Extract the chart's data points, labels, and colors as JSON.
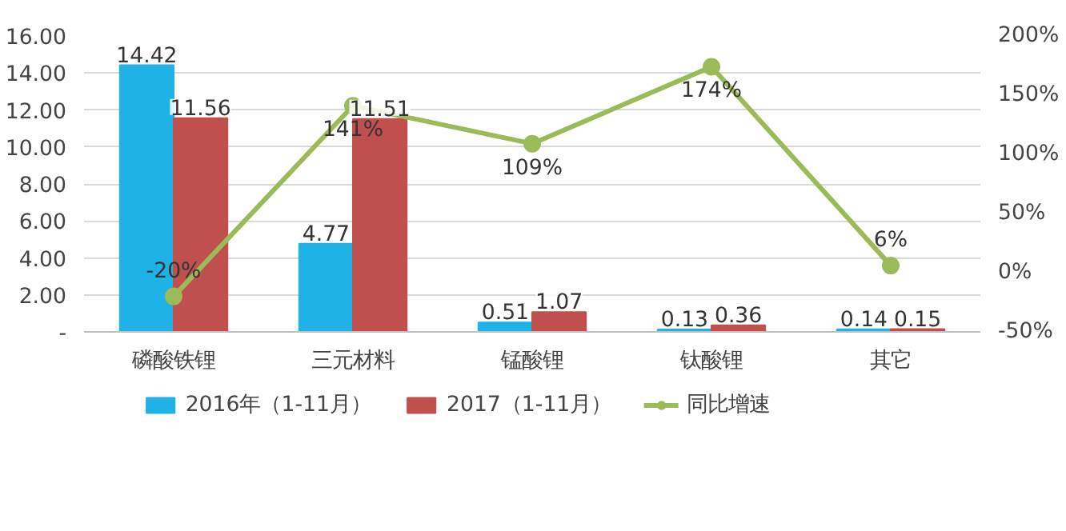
{
  "chart_data": {
    "type": "bar",
    "categories": [
      "磷酸铁锂",
      "三元材料",
      "锰酸锂",
      "钛酸锂",
      "其它"
    ],
    "series": [
      {
        "name": "2016年（1-11月）",
        "color": "#1fb2e6",
        "values": [
          14.42,
          4.77,
          0.51,
          0.13,
          0.14
        ]
      },
      {
        "name": "2017（1-11月）",
        "color": "#c0504d",
        "values": [
          11.56,
          11.51,
          1.07,
          0.36,
          0.15
        ]
      },
      {
        "name": "同比增速",
        "type": "line",
        "axis": "y2",
        "color": "#9bbb59",
        "values": [
          -20,
          141,
          109,
          174,
          6
        ],
        "value_labels": [
          "-20%",
          "141%",
          "109%",
          "174%",
          "6%"
        ]
      }
    ],
    "data_labels": true,
    "ylim": [
      0,
      16
    ],
    "yticks": [
      {
        "value": 0,
        "label": "-"
      },
      {
        "value": 2,
        "label": "2.00"
      },
      {
        "value": 4,
        "label": "4.00"
      },
      {
        "value": 6,
        "label": "6.00"
      },
      {
        "value": 8,
        "label": "8.00"
      },
      {
        "value": 10,
        "label": "10.00"
      },
      {
        "value": 12,
        "label": "12.00"
      },
      {
        "value": 14,
        "label": "14.00"
      },
      {
        "value": 16,
        "label": "16.00"
      }
    ],
    "y2lim": [
      -50,
      200
    ],
    "y2ticks": [
      {
        "value": -50,
        "label": "-50%"
      },
      {
        "value": 0,
        "label": "0%"
      },
      {
        "value": 50,
        "label": "50%"
      },
      {
        "value": 100,
        "label": "100%"
      },
      {
        "value": 150,
        "label": "150%"
      },
      {
        "value": 200,
        "label": "200%"
      }
    ],
    "grid": "y",
    "legend": "bottom",
    "marker": "circle",
    "line_style": "solid"
  }
}
